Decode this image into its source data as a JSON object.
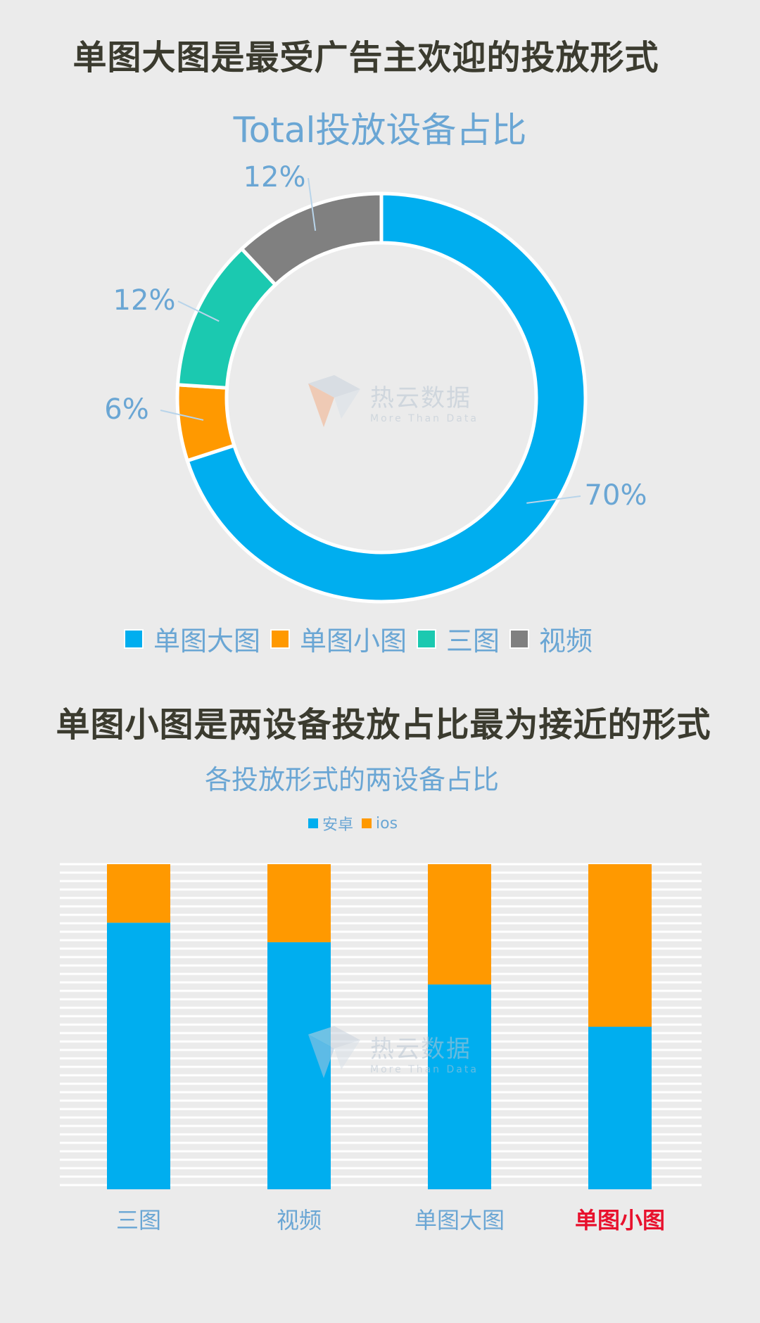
{
  "headline_1": "单图大图是最受广告主欢迎的投放形式",
  "headline_2": "单图小图是两设备投放占比最为接近的形式",
  "watermark": {
    "cn": "热云数据",
    "en": "More Than Data"
  },
  "colors": {
    "blue": "#00aeef",
    "orange": "#ff9900",
    "teal": "#1bc9b0",
    "gray": "#808080",
    "title_blue": "#6aa6d4",
    "highlight_red": "#e8112d"
  },
  "chart_data": [
    {
      "type": "donut",
      "title": "Total投放设备占比",
      "categories": [
        "单图大图",
        "单图小图",
        "三图",
        "视频"
      ],
      "values": [
        70,
        6,
        12,
        12
      ],
      "labels": [
        "70%",
        "6%",
        "12%",
        "12%"
      ],
      "legend": "bottom"
    },
    {
      "type": "bar",
      "stacked": true,
      "percent": true,
      "title": "各投放形式的两设备占比",
      "categories": [
        "三图",
        "视频",
        "单图大图",
        "单图小图"
      ],
      "highlighted_category": "单图小图",
      "series": [
        {
          "name": "安卓",
          "values": [
            82,
            76,
            63,
            50
          ]
        },
        {
          "name": "ios",
          "values": [
            18,
            24,
            37,
            50
          ]
        }
      ],
      "ylim": [
        0,
        100
      ],
      "legend": "top",
      "grid": true
    }
  ]
}
